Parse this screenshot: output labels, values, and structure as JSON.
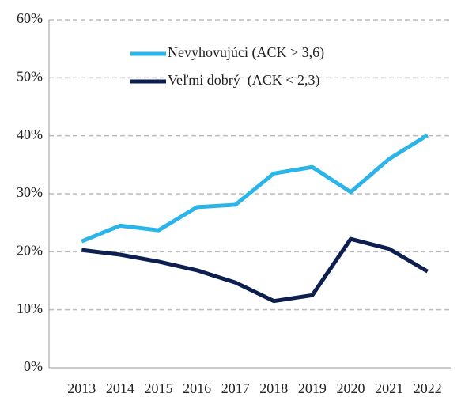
{
  "chart_data": {
    "type": "line",
    "categories": [
      "2013",
      "2014",
      "2015",
      "2016",
      "2017",
      "2018",
      "2019",
      "2020",
      "2021",
      "2022"
    ],
    "series": [
      {
        "name": "Nevyhovujúci (ACK > 3,6)",
        "color": "#2ab4e8",
        "values": [
          21.8,
          24.5,
          23.7,
          27.7,
          28.1,
          33.5,
          34.6,
          30.3,
          36.0,
          40.1
        ]
      },
      {
        "name": "Veľmi dobrý  (ACK < 2,3)",
        "color": "#0d1f4f",
        "values": [
          20.3,
          19.5,
          18.3,
          16.8,
          14.7,
          11.5,
          12.5,
          22.2,
          20.5,
          16.6
        ]
      }
    ],
    "ylim": [
      0,
      60
    ],
    "yticks": [
      {
        "value": 0,
        "label": "0%"
      },
      {
        "value": 10,
        "label": "10%"
      },
      {
        "value": 20,
        "label": "20%"
      },
      {
        "value": 30,
        "label": "30%"
      },
      {
        "value": 40,
        "label": "40%"
      },
      {
        "value": 50,
        "label": "50%"
      },
      {
        "value": 60,
        "label": "60%"
      }
    ],
    "grid": true,
    "legend": "top"
  }
}
